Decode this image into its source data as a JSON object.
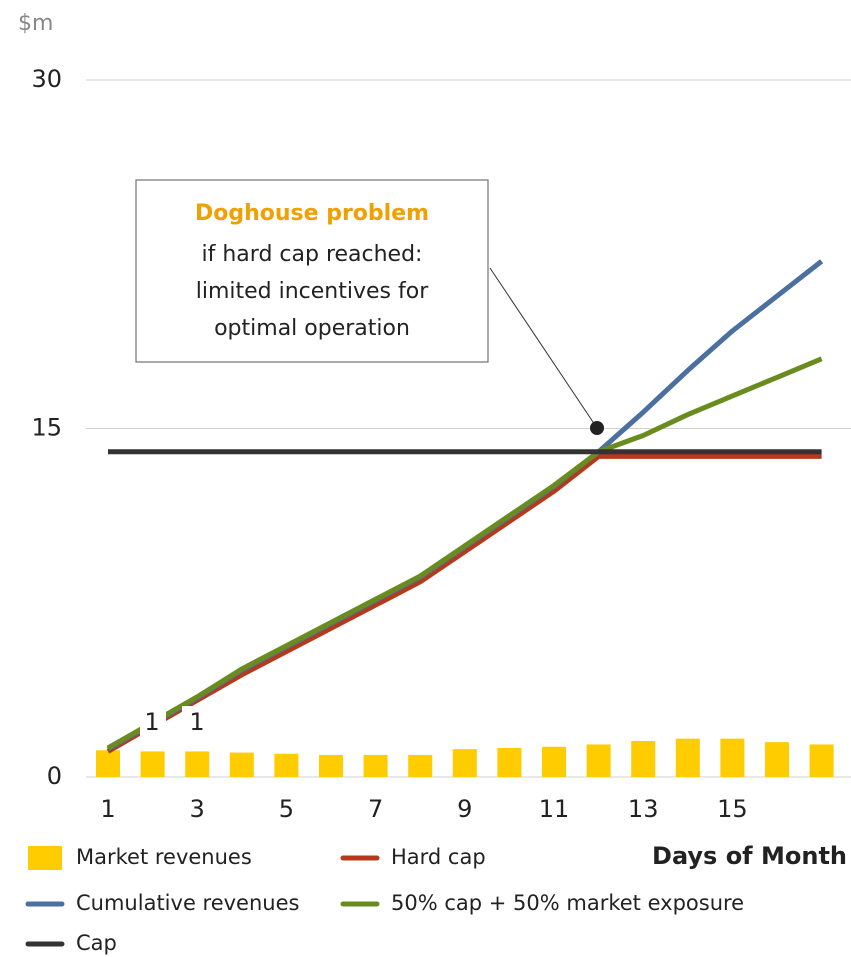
{
  "chart_data": {
    "type": "combo",
    "y_axis_unit": "$m",
    "x_axis_title": "Days of  Month",
    "categories": [
      "1",
      null,
      "3",
      null,
      "5",
      null,
      "7",
      null,
      "9",
      null,
      "11",
      null,
      "13",
      null,
      "15",
      null,
      null
    ],
    "ylim": [
      0,
      30
    ],
    "yticks": [
      0,
      15,
      30
    ],
    "grid": true,
    "series": [
      {
        "name": "Market revenues",
        "type": "bar",
        "color": "#ffcc00",
        "values": [
          1.15,
          1.1,
          1.1,
          1.05,
          1.0,
          0.95,
          0.95,
          0.95,
          1.2,
          1.25,
          1.3,
          1.4,
          1.55,
          1.65,
          1.65,
          1.5,
          1.4
        ]
      },
      {
        "name": "Hard cap",
        "type": "line",
        "color": "#b5391a",
        "values": [
          1.1,
          2.2,
          3.3,
          4.4,
          5.4,
          6.4,
          7.4,
          8.4,
          9.7,
          11.0,
          12.3,
          13.8,
          13.8,
          13.8,
          13.8,
          13.8,
          13.8
        ]
      },
      {
        "name": "Cumulative revenues",
        "type": "line",
        "color": "#4a6fa0",
        "values": [
          1.2,
          2.3,
          3.4,
          4.6,
          5.6,
          6.6,
          7.6,
          8.6,
          9.9,
          11.2,
          12.5,
          14.0,
          15.7,
          17.5,
          19.2,
          20.7,
          22.2
        ]
      },
      {
        "name": "50% cap + 50% market exposure",
        "type": "line",
        "color": "#6a8c1f",
        "values": [
          1.25,
          2.35,
          3.45,
          4.65,
          5.65,
          6.65,
          7.65,
          8.65,
          9.95,
          11.25,
          12.55,
          14.0,
          14.7,
          15.6,
          16.4,
          17.2,
          18.0
        ]
      },
      {
        "name": "Cap",
        "type": "line",
        "color": "#333333",
        "values": [
          14,
          14,
          14,
          14,
          14,
          14,
          14,
          14,
          14,
          14,
          14,
          14,
          14,
          14,
          14,
          14,
          14
        ]
      }
    ],
    "annotation": {
      "title": "Doghouse problem",
      "lines": [
        "if hard cap reached:",
        "limited incentives for",
        "optimal operation"
      ]
    },
    "stray_labels": [
      "1",
      "1"
    ]
  }
}
